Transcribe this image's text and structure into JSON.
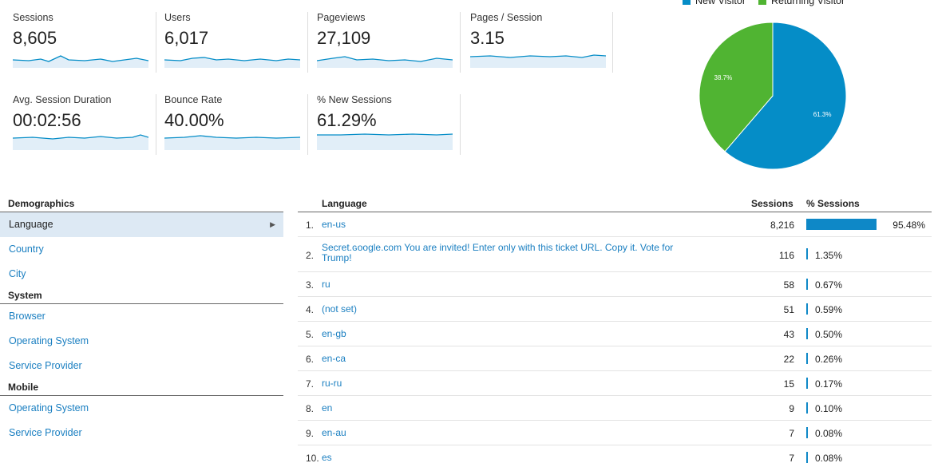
{
  "metrics": [
    {
      "label": "Sessions",
      "value": "8,605"
    },
    {
      "label": "Users",
      "value": "6,017"
    },
    {
      "label": "Pageviews",
      "value": "27,109"
    },
    {
      "label": "Pages / Session",
      "value": "3.15"
    },
    {
      "label": "Avg. Session Duration",
      "value": "00:02:56"
    },
    {
      "label": "Bounce Rate",
      "value": "40.00%"
    },
    {
      "label": "% New Sessions",
      "value": "61.29%"
    }
  ],
  "pie": {
    "legend": [
      {
        "label": "New Visitor",
        "color": "#058dc7"
      },
      {
        "label": "Returning Visitor",
        "color": "#50b432"
      }
    ],
    "slices": [
      {
        "label": "61.3%",
        "value": 61.3,
        "color": "#058dc7"
      },
      {
        "label": "38.7%",
        "value": 38.7,
        "color": "#50b432"
      }
    ]
  },
  "sidebar": {
    "sections": [
      {
        "title": "Demographics",
        "items": [
          "Language",
          "Country",
          "City"
        ]
      },
      {
        "title": "System",
        "items": [
          "Browser",
          "Operating System",
          "Service Provider"
        ]
      },
      {
        "title": "Mobile",
        "items": [
          "Operating System",
          "Service Provider"
        ]
      }
    ]
  },
  "table": {
    "headers": {
      "language": "Language",
      "sessions": "Sessions",
      "pct": "% Sessions"
    },
    "rows": [
      {
        "idx": "1.",
        "lang": "en-us",
        "sessions": "8,216",
        "pct": "95.48%",
        "share": 95.48
      },
      {
        "idx": "2.",
        "lang": "Secret.ɢoogle.com You are invited! Enter only with this ticket URL. Copy it. Vote for Trump!",
        "sessions": "116",
        "pct": "1.35%",
        "share": 1.35
      },
      {
        "idx": "3.",
        "lang": "ru",
        "sessions": "58",
        "pct": "0.67%",
        "share": 0.67
      },
      {
        "idx": "4.",
        "lang": "(not set)",
        "sessions": "51",
        "pct": "0.59%",
        "share": 0.59
      },
      {
        "idx": "5.",
        "lang": "en-gb",
        "sessions": "43",
        "pct": "0.50%",
        "share": 0.5
      },
      {
        "idx": "6.",
        "lang": "en-ca",
        "sessions": "22",
        "pct": "0.26%",
        "share": 0.26
      },
      {
        "idx": "7.",
        "lang": "ru-ru",
        "sessions": "15",
        "pct": "0.17%",
        "share": 0.17
      },
      {
        "idx": "8.",
        "lang": "en",
        "sessions": "9",
        "pct": "0.10%",
        "share": 0.1
      },
      {
        "idx": "9.",
        "lang": "en-au",
        "sessions": "7",
        "pct": "0.08%",
        "share": 0.08
      },
      {
        "idx": "10.",
        "lang": "es",
        "sessions": "7",
        "pct": "0.08%",
        "share": 0.08
      }
    ]
  }
}
